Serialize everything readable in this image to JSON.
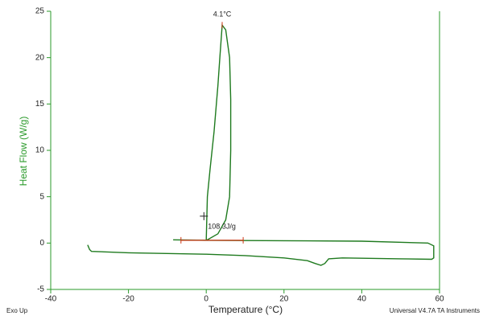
{
  "chart_data": {
    "type": "line",
    "x_label": "Temperature (°C)",
    "y_label": "Heat Flow (W/g)",
    "footer_left": "Exo Up",
    "footer_right": "Universal V4.7A TA Instruments",
    "color": "#1e7a1e",
    "axis_color": "#2a9a2a",
    "xlim": [
      -40,
      60
    ],
    "xticks": [
      -40,
      -20,
      0,
      20,
      40,
      60
    ],
    "ylim": [
      -5,
      25
    ],
    "yticks": [
      -5,
      0,
      5,
      10,
      15,
      20,
      25
    ],
    "x": [
      -30.5,
      -30.0,
      -29.5,
      -20,
      0,
      10,
      20,
      26,
      28,
      29.5,
      30.5,
      31.5,
      35,
      50,
      58,
      58.5,
      58.5,
      57,
      40,
      20,
      0,
      -8.5,
      null,
      0,
      0.1,
      0.3,
      1,
      2,
      3,
      3.5,
      4.1,
      5,
      6,
      6.3,
      6.3,
      6,
      5,
      3,
      0.5,
      0
    ],
    "values": [
      -0.2,
      -0.7,
      -0.9,
      -1.05,
      -1.2,
      -1.35,
      -1.6,
      -1.9,
      -2.2,
      -2.4,
      -2.2,
      -1.7,
      -1.6,
      -1.7,
      -1.75,
      -1.6,
      -0.3,
      0.0,
      0.2,
      0.25,
      0.3,
      0.35,
      null,
      0.3,
      2,
      5,
      8,
      12,
      17,
      20,
      23.5,
      23,
      20,
      15.5,
      10,
      5,
      2.5,
      1,
      0.4,
      0.3
    ],
    "annotations": [
      {
        "text": "4.1°C",
        "x": 4.1,
        "y": 23.5
      },
      {
        "text": "108.3J/g",
        "x": -0.6,
        "y": 2.9
      }
    ],
    "baseline": {
      "x": [
        -6.5,
        9.5
      ],
      "y": 0.3,
      "color": "#cc3311"
    }
  }
}
